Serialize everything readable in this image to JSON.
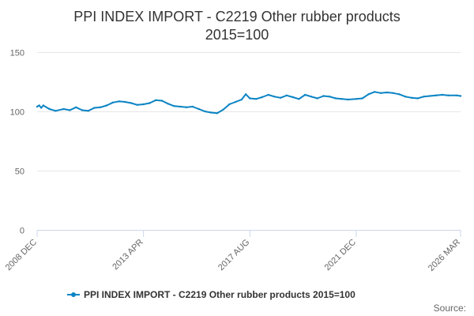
{
  "chart_data": {
    "type": "line",
    "title": "PPI INDEX IMPORT - C2219 Other rubber products",
    "subtitle": "2015=100",
    "xlabel": "",
    "ylabel": "",
    "ylim": [
      0,
      150
    ],
    "yticks": [
      0,
      50,
      100,
      150
    ],
    "xlim": [
      "2008-12",
      "2026-03"
    ],
    "xticks": [
      {
        "date": "2008-12",
        "label": "2008 DEC"
      },
      {
        "date": "2013-04",
        "label": "2013 APR"
      },
      {
        "date": "2017-08",
        "label": "2017 AUG"
      },
      {
        "date": "2021-12",
        "label": "2021 DEC"
      },
      {
        "date": "2026-03",
        "label": "2026 MAR"
      }
    ],
    "grid": "horizontal",
    "legend": "bottom",
    "colors": {
      "series": "#0b84c4",
      "grid": "#e6e6e6",
      "axis": "#ccd6eb"
    },
    "series": [
      {
        "name": "PPI INDEX IMPORT - C2219 Other rubber products 2015=100",
        "points": [
          [
            "2008-12",
            104.0
          ],
          [
            "2009-01",
            105.0
          ],
          [
            "2009-02",
            103.0
          ],
          [
            "2009-03",
            105.0
          ],
          [
            "2009-06",
            102.0
          ],
          [
            "2009-09",
            100.5
          ],
          [
            "2010-01",
            102.0
          ],
          [
            "2010-04",
            101.0
          ],
          [
            "2010-07",
            103.5
          ],
          [
            "2010-10",
            101.0
          ],
          [
            "2011-01",
            100.5
          ],
          [
            "2011-04",
            103.0
          ],
          [
            "2011-07",
            103.5
          ],
          [
            "2011-10",
            105.0
          ],
          [
            "2012-01",
            107.5
          ],
          [
            "2012-04",
            108.5
          ],
          [
            "2012-07",
            108.0
          ],
          [
            "2012-10",
            107.0
          ],
          [
            "2013-01",
            105.5
          ],
          [
            "2013-04",
            106.0
          ],
          [
            "2013-07",
            107.0
          ],
          [
            "2013-10",
            109.5
          ],
          [
            "2014-01",
            109.0
          ],
          [
            "2014-04",
            106.5
          ],
          [
            "2014-07",
            104.5
          ],
          [
            "2014-10",
            104.0
          ],
          [
            "2015-01",
            103.5
          ],
          [
            "2015-04",
            104.0
          ],
          [
            "2015-07",
            102.0
          ],
          [
            "2015-10",
            100.0
          ],
          [
            "2016-01",
            99.0
          ],
          [
            "2016-04",
            98.5
          ],
          [
            "2016-07",
            101.5
          ],
          [
            "2016-10",
            106.0
          ],
          [
            "2017-01",
            108.0
          ],
          [
            "2017-04",
            110.0
          ],
          [
            "2017-06",
            114.5
          ],
          [
            "2017-08",
            111.0
          ],
          [
            "2017-11",
            110.5
          ],
          [
            "2018-02",
            112.0
          ],
          [
            "2018-05",
            114.0
          ],
          [
            "2018-08",
            112.5
          ],
          [
            "2018-11",
            111.5
          ],
          [
            "2019-02",
            113.5
          ],
          [
            "2019-05",
            112.0
          ],
          [
            "2019-08",
            110.5
          ],
          [
            "2019-11",
            114.0
          ],
          [
            "2020-02",
            112.5
          ],
          [
            "2020-05",
            111.0
          ],
          [
            "2020-08",
            113.0
          ],
          [
            "2020-11",
            112.5
          ],
          [
            "2021-02",
            111.0
          ],
          [
            "2021-05",
            110.5
          ],
          [
            "2021-08",
            110.0
          ],
          [
            "2021-12",
            110.5
          ],
          [
            "2022-03",
            111.0
          ],
          [
            "2022-06",
            114.5
          ],
          [
            "2022-09",
            116.5
          ],
          [
            "2022-12",
            115.5
          ],
          [
            "2023-03",
            116.0
          ],
          [
            "2023-06",
            115.5
          ],
          [
            "2023-09",
            114.5
          ],
          [
            "2023-12",
            112.5
          ],
          [
            "2024-03",
            111.5
          ],
          [
            "2024-06",
            111.0
          ],
          [
            "2024-09",
            112.5
          ],
          [
            "2024-12",
            113.0
          ],
          [
            "2025-03",
            113.5
          ],
          [
            "2025-06",
            114.0
          ],
          [
            "2025-09",
            113.5
          ],
          [
            "2026-01",
            113.5
          ],
          [
            "2026-03",
            113.0
          ]
        ]
      }
    ]
  },
  "credits": {
    "label": "Source:"
  }
}
